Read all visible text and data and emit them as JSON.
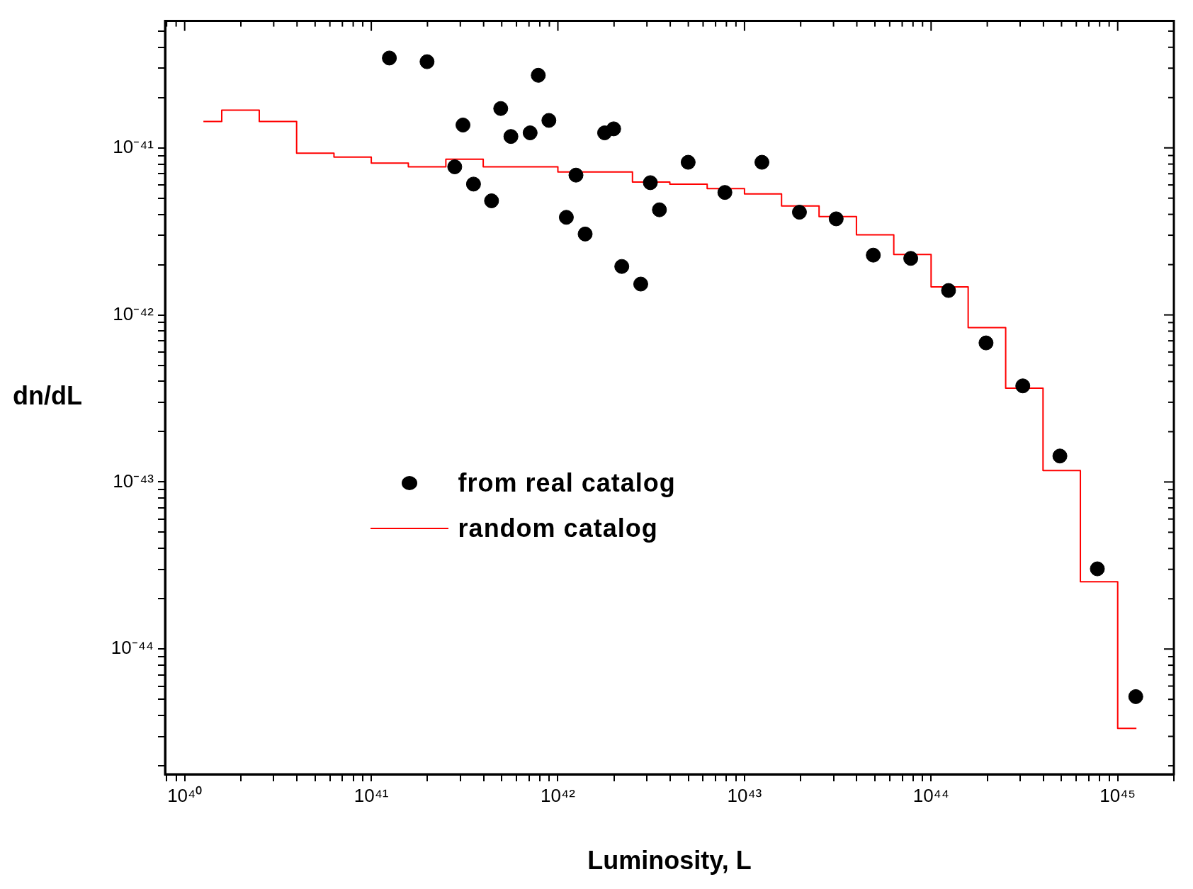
{
  "chart_data": {
    "type": "scatter",
    "xlabel": "Luminosity, L",
    "ylabel": "dn/dL",
    "log": "xy",
    "grid": false,
    "legend": "center",
    "xlim": [
      7.85e+39,
      2e+45
    ],
    "ylim": [
      1.78e-45,
      5.75e-41
    ],
    "xticks": [
      {
        "value": 8e+39,
        "label": null
      },
      {
        "value": 9e+39,
        "label": null
      },
      {
        "value": 1e+40,
        "label": "10⁴⁰"
      },
      {
        "value": 2e+40,
        "label": null
      },
      {
        "value": 3e+40,
        "label": null
      },
      {
        "value": 4e+40,
        "label": null
      },
      {
        "value": 5e+40,
        "label": null
      },
      {
        "value": 6e+40,
        "label": null
      },
      {
        "value": 7e+40,
        "label": null
      },
      {
        "value": 8e+40,
        "label": null
      },
      {
        "value": 9e+40,
        "label": null
      },
      {
        "value": 1e+41,
        "label": "10⁴¹"
      },
      {
        "value": 2e+41,
        "label": null
      },
      {
        "value": 3e+41,
        "label": null
      },
      {
        "value": 4e+41,
        "label": null
      },
      {
        "value": 5e+41,
        "label": null
      },
      {
        "value": 6e+41,
        "label": null
      },
      {
        "value": 7e+41,
        "label": null
      },
      {
        "value": 8e+41,
        "label": null
      },
      {
        "value": 9e+41,
        "label": null
      },
      {
        "value": 1e+42,
        "label": "10⁴²"
      },
      {
        "value": 2e+42,
        "label": null
      },
      {
        "value": 3e+42,
        "label": null
      },
      {
        "value": 4e+42,
        "label": null
      },
      {
        "value": 5e+42,
        "label": null
      },
      {
        "value": 6e+42,
        "label": null
      },
      {
        "value": 7e+42,
        "label": null
      },
      {
        "value": 8e+42,
        "label": null
      },
      {
        "value": 9e+42,
        "label": null
      },
      {
        "value": 1e+43,
        "label": "10⁴³"
      },
      {
        "value": 2e+43,
        "label": null
      },
      {
        "value": 3e+43,
        "label": null
      },
      {
        "value": 4e+43,
        "label": null
      },
      {
        "value": 5e+43,
        "label": null
      },
      {
        "value": 6e+43,
        "label": null
      },
      {
        "value": 7e+43,
        "label": null
      },
      {
        "value": 8e+43,
        "label": null
      },
      {
        "value": 9e+43,
        "label": null
      },
      {
        "value": 1e+44,
        "label": "10⁴⁴"
      },
      {
        "value": 2e+44,
        "label": null
      },
      {
        "value": 3e+44,
        "label": null
      },
      {
        "value": 4e+44,
        "label": null
      },
      {
        "value": 5e+44,
        "label": null
      },
      {
        "value": 6e+44,
        "label": null
      },
      {
        "value": 7e+44,
        "label": null
      },
      {
        "value": 8e+44,
        "label": null
      },
      {
        "value": 9e+44,
        "label": null
      },
      {
        "value": 1e+45,
        "label": "10⁴⁵"
      },
      {
        "value": 2e+45,
        "label": null
      }
    ],
    "yticks": [
      {
        "value": 2e-45,
        "label": null
      },
      {
        "value": 3e-45,
        "label": null
      },
      {
        "value": 4e-45,
        "label": null
      },
      {
        "value": 5e-45,
        "label": null
      },
      {
        "value": 6e-45,
        "label": null
      },
      {
        "value": 7e-45,
        "label": null
      },
      {
        "value": 8e-45,
        "label": null
      },
      {
        "value": 9e-45,
        "label": null
      },
      {
        "value": 1e-44,
        "label": "10⁻⁴⁴"
      },
      {
        "value": 2e-44,
        "label": null
      },
      {
        "value": 3e-44,
        "label": null
      },
      {
        "value": 4e-44,
        "label": null
      },
      {
        "value": 5e-44,
        "label": null
      },
      {
        "value": 6e-44,
        "label": null
      },
      {
        "value": 7e-44,
        "label": null
      },
      {
        "value": 8e-44,
        "label": null
      },
      {
        "value": 9e-44,
        "label": null
      },
      {
        "value": 1e-43,
        "label": "10⁻⁴³"
      },
      {
        "value": 2e-43,
        "label": null
      },
      {
        "value": 3e-43,
        "label": null
      },
      {
        "value": 4e-43,
        "label": null
      },
      {
        "value": 5e-43,
        "label": null
      },
      {
        "value": 6e-43,
        "label": null
      },
      {
        "value": 7e-43,
        "label": null
      },
      {
        "value": 8e-43,
        "label": null
      },
      {
        "value": 9e-43,
        "label": null
      },
      {
        "value": 1e-42,
        "label": "10⁻⁴²"
      },
      {
        "value": 2e-42,
        "label": null
      },
      {
        "value": 3e-42,
        "label": null
      },
      {
        "value": 4e-42,
        "label": null
      },
      {
        "value": 5e-42,
        "label": null
      },
      {
        "value": 6e-42,
        "label": null
      },
      {
        "value": 7e-42,
        "label": null
      },
      {
        "value": 8e-42,
        "label": null
      },
      {
        "value": 9e-42,
        "label": null
      },
      {
        "value": 1e-41,
        "label": "10⁻⁴¹"
      },
      {
        "value": 2e-41,
        "label": null
      },
      {
        "value": 3e-41,
        "label": null
      },
      {
        "value": 4e-41,
        "label": null
      },
      {
        "value": 5e-41,
        "label": null
      }
    ],
    "series": [
      {
        "name": "from real catalog",
        "marker": "circle",
        "color": "#000000",
        "x": [
          1.25e+41,
          1.99e+41,
          3.1e+41,
          2.8e+41,
          3.53e+41,
          4.41e+41,
          4.94e+41,
          5.6e+41,
          7.1e+41,
          7.85e+41,
          8.95e+41,
          1.11e+42,
          1.25e+42,
          1.4e+42,
          1.78e+42,
          1.99e+42,
          2.2e+42,
          2.78e+42,
          3.13e+42,
          3.5e+42,
          4.99e+42,
          7.85e+42,
          1.24e+43,
          1.97e+43,
          3.1e+43,
          4.9e+43,
          7.78e+43,
          1.24e+44,
          1.97e+44,
          3.1e+44,
          4.9e+44,
          7.78e+44,
          1.25e+45
        ],
        "values": [
          3.45e-41,
          3.28e-41,
          1.37e-41,
          7.7e-42,
          6.07e-42,
          4.82e-42,
          1.72e-41,
          1.17e-41,
          1.23e-41,
          2.72e-41,
          1.46e-41,
          3.84e-42,
          6.87e-42,
          3.05e-42,
          1.23e-41,
          1.3e-41,
          1.95e-42,
          1.53e-42,
          6.19e-42,
          4.26e-42,
          8.2e-42,
          5.41e-42,
          8.2e-42,
          4.12e-42,
          3.76e-42,
          2.28e-42,
          2.18e-42,
          1.4e-42,
          6.8e-43,
          3.76e-43,
          1.43e-43,
          3.02e-44,
          5.19e-45
        ]
      },
      {
        "name": "random catalog",
        "type": "step",
        "color": "#ff0000",
        "x": [
          1.26e+40,
          1.58e+40,
          2.51e+40,
          3.98e+40,
          6.31e+40,
          1e+41,
          1.58e+41,
          2.51e+41,
          3.98e+41,
          1e+42,
          2.51e+42,
          3.98e+42,
          6.31e+42,
          1e+43,
          1.58e+43,
          2.51e+43,
          3.98e+43,
          6.31e+43,
          1e+44,
          1.58e+44,
          2.51e+44,
          3.98e+44,
          6.31e+44,
          1e+45,
          1.26e+45
        ],
        "values": [
          1.44e-41,
          1.68e-41,
          1.44e-41,
          9.3e-42,
          8.8e-42,
          8.1e-42,
          7.7e-42,
          8.55e-42,
          7.7e-42,
          7.17e-42,
          6.25e-42,
          6.07e-42,
          5.7e-42,
          5.3e-42,
          4.49e-42,
          3.88e-42,
          3.02e-42,
          2.3e-42,
          1.47e-42,
          8.4e-43,
          3.64e-43,
          1.17e-43,
          2.53e-44,
          3.35e-45,
          3.35e-45
        ]
      }
    ]
  }
}
